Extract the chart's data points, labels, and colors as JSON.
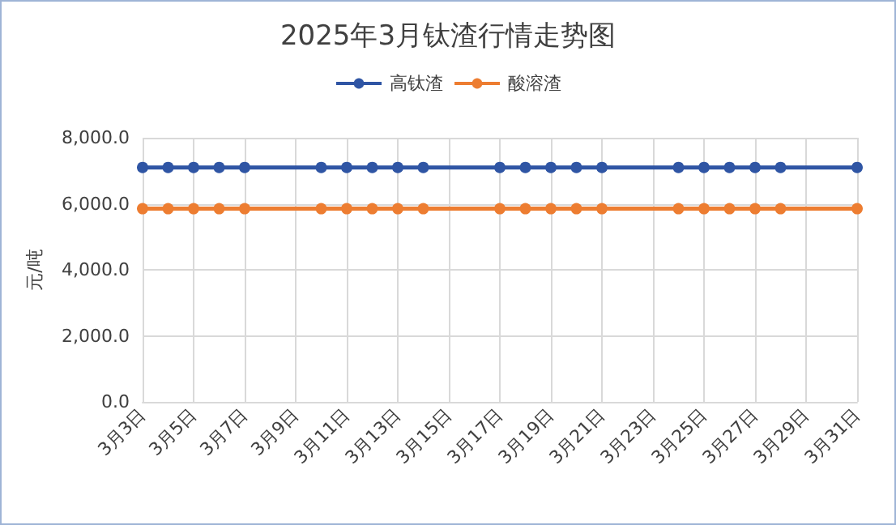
{
  "chart_data": {
    "type": "line",
    "title": "2025年3月钛渣行情走势图",
    "ylabel": "元/吨",
    "categories": [
      "3月3日",
      null,
      "3月5日",
      null,
      "3月7日",
      null,
      "3月9日",
      null,
      "3月11日",
      null,
      "3月13日",
      null,
      "3月15日",
      null,
      "3月17日",
      null,
      "3月19日",
      null,
      "3月21日",
      null,
      "3月23日",
      null,
      "3月25日",
      null,
      "3月27日",
      null,
      "3月29日",
      null,
      "3月31日"
    ],
    "series": [
      {
        "name": "高钛渣",
        "color": "#2f55a4",
        "values": [
          7100,
          7100,
          7100,
          7100,
          7100,
          null,
          null,
          7100,
          7100,
          7100,
          7100,
          7100,
          null,
          null,
          7100,
          7100,
          7100,
          7100,
          7100,
          null,
          null,
          7100,
          7100,
          7100,
          7100,
          7100,
          null,
          null,
          7100
        ]
      },
      {
        "name": "酸溶渣",
        "color": "#ed7d31",
        "values": [
          5850,
          5850,
          5850,
          5850,
          5850,
          null,
          null,
          5850,
          5850,
          5850,
          5850,
          5850,
          null,
          null,
          5850,
          5850,
          5850,
          5850,
          5850,
          null,
          null,
          5850,
          5850,
          5850,
          5850,
          5850,
          null,
          null,
          5850
        ]
      }
    ],
    "ylim": [
      0,
      8000
    ],
    "yticks": [
      {
        "value": 0,
        "label": "0.0"
      },
      {
        "value": 2000,
        "label": "2,000.0"
      },
      {
        "value": 4000,
        "label": "4,000.0"
      },
      {
        "value": 6000,
        "label": "6,000.0"
      },
      {
        "value": 8000,
        "label": "8,000.0"
      }
    ],
    "grid": true,
    "legend": "top",
    "marker": "circle",
    "line_style": "solid"
  }
}
